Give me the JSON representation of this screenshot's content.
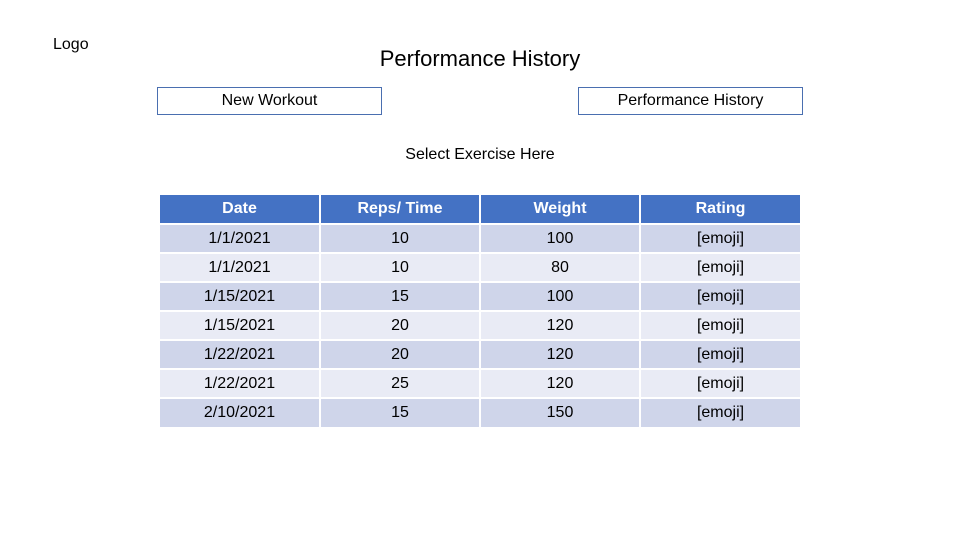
{
  "logo": "Logo",
  "title": "Performance History",
  "nav": {
    "new_workout": "New Workout",
    "performance_history": "Performance History"
  },
  "select_exercise": "Select Exercise Here",
  "table": {
    "headers": [
      "Date",
      "Reps/ Time",
      "Weight",
      "Rating"
    ],
    "rows": [
      [
        "1/1/2021",
        "10",
        "100",
        "[emoji]"
      ],
      [
        "1/1/2021",
        "10",
        "80",
        "[emoji]"
      ],
      [
        "1/15/2021",
        "15",
        "100",
        "[emoji]"
      ],
      [
        "1/15/2021",
        "20",
        "120",
        "[emoji]"
      ],
      [
        "1/22/2021",
        "20",
        "120",
        "[emoji]"
      ],
      [
        "1/22/2021",
        "25",
        "120",
        "[emoji]"
      ],
      [
        "2/10/2021",
        "15",
        "150",
        "[emoji]"
      ]
    ]
  },
  "colors": {
    "header_bg": "#4472c4",
    "row_odd_bg": "#cfd5ea",
    "row_even_bg": "#e9ebf5",
    "button_border": "#4a6fb0"
  }
}
